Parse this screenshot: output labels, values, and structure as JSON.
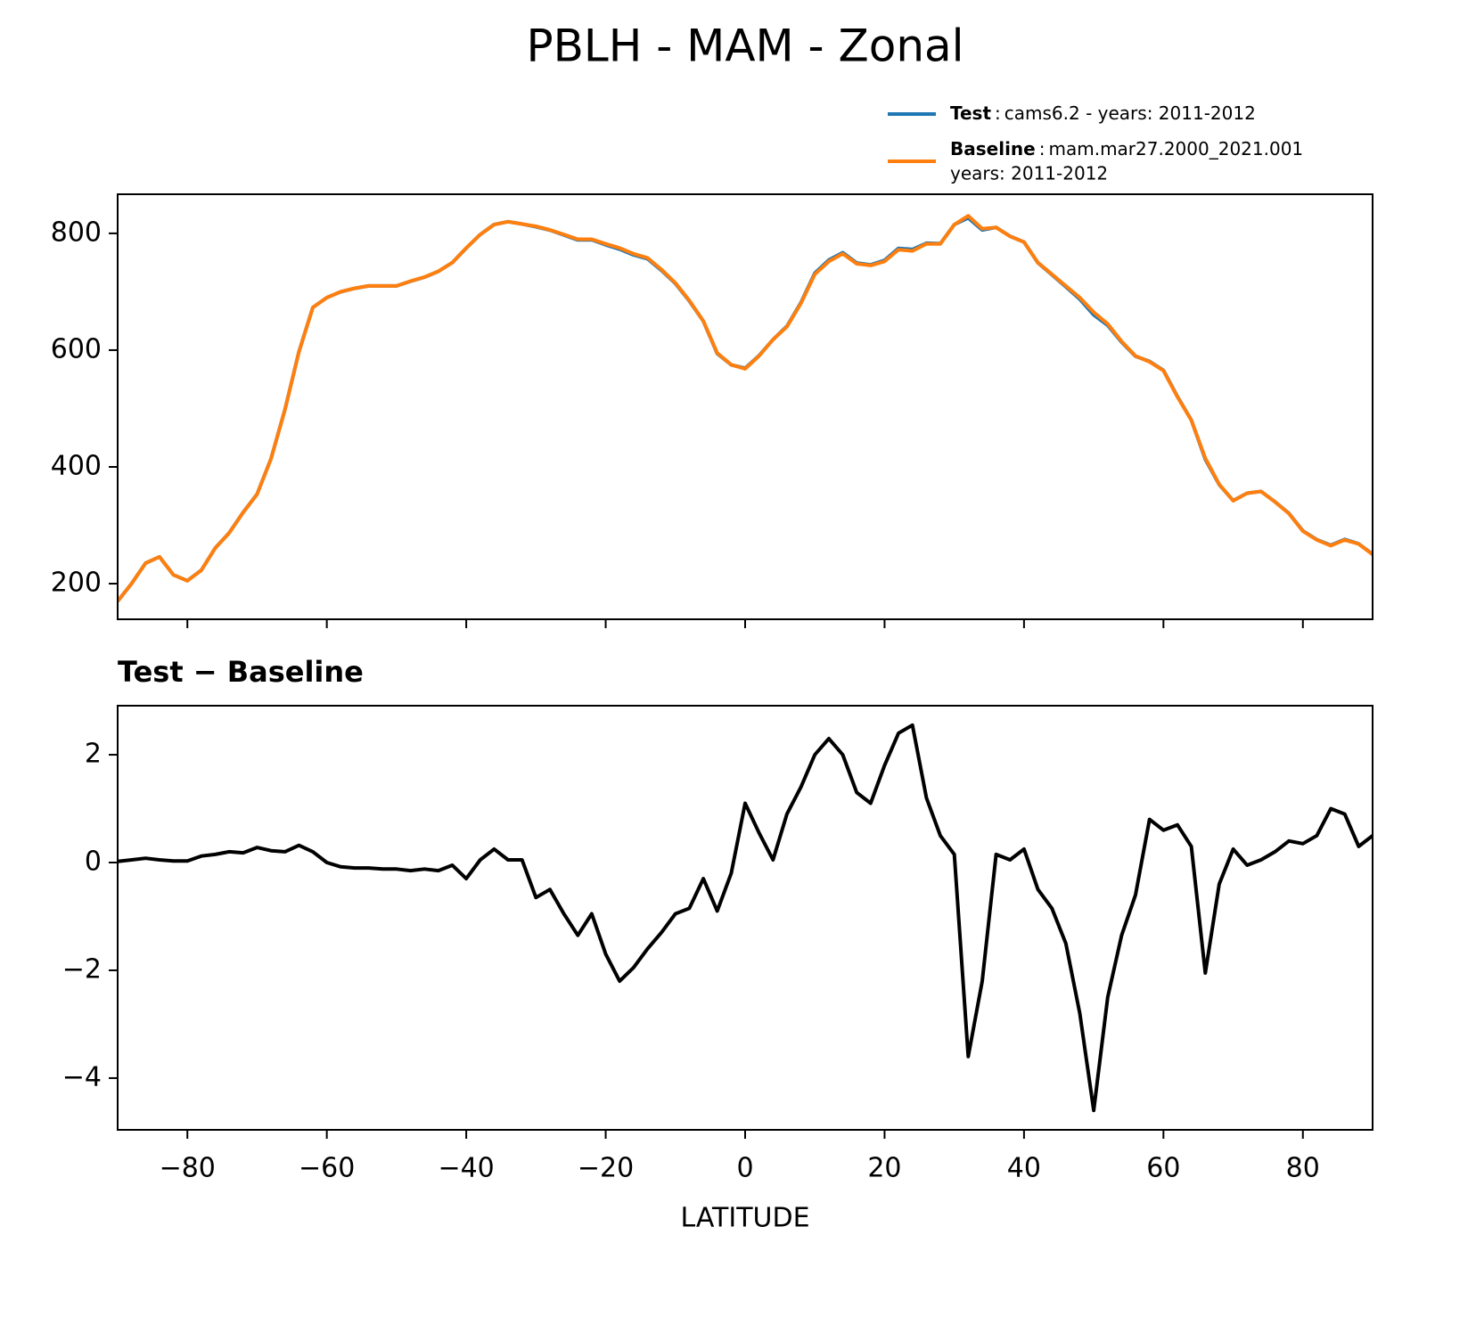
{
  "title": "PBLH - MAM - Zonal",
  "chart_data": [
    {
      "type": "line",
      "x": [
        -90,
        -88,
        -86,
        -84,
        -82,
        -80,
        -78,
        -76,
        -74,
        -72,
        -70,
        -68,
        -66,
        -64,
        -62,
        -60,
        -58,
        -56,
        -54,
        -52,
        -50,
        -48,
        -46,
        -44,
        -42,
        -40,
        -38,
        -36,
        -34,
        -32,
        -30,
        -28,
        -26,
        -24,
        -22,
        -20,
        -18,
        -16,
        -14,
        -12,
        -10,
        -8,
        -6,
        -4,
        -2,
        0,
        2,
        4,
        6,
        8,
        10,
        12,
        14,
        16,
        18,
        20,
        22,
        24,
        26,
        28,
        30,
        32,
        34,
        36,
        38,
        40,
        42,
        44,
        46,
        48,
        50,
        52,
        54,
        56,
        58,
        60,
        62,
        64,
        66,
        68,
        70,
        72,
        74,
        76,
        78,
        80,
        82,
        84,
        86,
        88,
        90
      ],
      "series": [
        {
          "name": "Test",
          "label": [
            "cams6.2 - years: 2011-2012"
          ],
          "color": "#1f77b4",
          "values": [
            170.02,
            200.05,
            235.08,
            246.05,
            215.03,
            205.03,
            223.12,
            261.15,
            287.2,
            322.18,
            353.28,
            414.22,
            498.2,
            597.32,
            673.2,
            690,
            699.92,
            705.9,
            709.9,
            709.88,
            709.88,
            717.85,
            724.88,
            734.85,
            749.95,
            774.7,
            798.05,
            815.25,
            820.05,
            816.05,
            811.35,
            805.5,
            797.05,
            788.65,
            789.05,
            780.3,
            772.8,
            763.05,
            756.4,
            736.7,
            714.05,
            684.15,
            649.7,
            594.1,
            574.8,
            569.1,
            590.55,
            618.05,
            640.9,
            681.4,
            732,
            754.3,
            767,
            749.3,
            746.1,
            753.8,
            774.4,
            772.55,
            783.2,
            782.5,
            815.15,
            826.4,
            805.8,
            810.15,
            795.05,
            785.25,
            749.5,
            729.15,
            708.5,
            687.2,
            660.4,
            642.5,
            613.65,
            589.4,
            580.8,
            565.6,
            520.7,
            480.3,
            412.95,
            369.6,
            342.25,
            354.95,
            358.05,
            340.2,
            320.4,
            290.35,
            275.5,
            266,
            275.9,
            268.3,
            250.5
          ]
        },
        {
          "name": "Baseline",
          "label": [
            "mam.mar27.2000_2021.001",
            "years: 2011-2012"
          ],
          "color": "#ff7f0e",
          "values": [
            170,
            200,
            235,
            246,
            215,
            205,
            223,
            261,
            287,
            322,
            353,
            414,
            498,
            597,
            673,
            690,
            700,
            706,
            710,
            710,
            710,
            718,
            725,
            735,
            750,
            775,
            798,
            815,
            820,
            816,
            812,
            806,
            798,
            790,
            790,
            782,
            775,
            765,
            758,
            738,
            715,
            685,
            650,
            595,
            575,
            568,
            590,
            618,
            640,
            680,
            730,
            752,
            765,
            748,
            745,
            752,
            772,
            770,
            782,
            782,
            815,
            830,
            808,
            810,
            795,
            785,
            750,
            730,
            710,
            690,
            665,
            645,
            615,
            590,
            580,
            565,
            520,
            480,
            415,
            370,
            342,
            355,
            358,
            340,
            320,
            290,
            275,
            265,
            275,
            268,
            250
          ]
        }
      ],
      "xlim": [
        -90,
        90
      ],
      "xticks": [
        -80,
        -60,
        -40,
        -20,
        0,
        20,
        40,
        60,
        80
      ],
      "ylim": [
        139,
        867
      ],
      "yticks": [
        200,
        400,
        600,
        800
      ],
      "legend": "upper right"
    },
    {
      "type": "line",
      "title": "Test − Baseline",
      "xlabel": "LATITUDE",
      "x": [
        -90,
        -88,
        -86,
        -84,
        -82,
        -80,
        -78,
        -76,
        -74,
        -72,
        -70,
        -68,
        -66,
        -64,
        -62,
        -60,
        -58,
        -56,
        -54,
        -52,
        -50,
        -48,
        -46,
        -44,
        -42,
        -40,
        -38,
        -36,
        -34,
        -32,
        -30,
        -28,
        -26,
        -24,
        -22,
        -20,
        -18,
        -16,
        -14,
        -12,
        -10,
        -8,
        -6,
        -4,
        -2,
        0,
        2,
        4,
        6,
        8,
        10,
        12,
        14,
        16,
        18,
        20,
        22,
        24,
        26,
        28,
        30,
        32,
        34,
        36,
        38,
        40,
        42,
        44,
        46,
        48,
        50,
        52,
        54,
        56,
        58,
        60,
        62,
        64,
        66,
        68,
        70,
        72,
        74,
        76,
        78,
        80,
        82,
        84,
        86,
        88,
        90
      ],
      "series": [
        {
          "color": "#000000",
          "values": [
            0.02,
            0.05,
            0.08,
            0.05,
            0.03,
            0.03,
            0.12,
            0.15,
            0.2,
            0.18,
            0.28,
            0.22,
            0.2,
            0.32,
            0.2,
            0,
            -0.08,
            -0.1,
            -0.1,
            -0.12,
            -0.12,
            -0.15,
            -0.12,
            -0.15,
            -0.05,
            -0.3,
            0.05,
            0.25,
            0.05,
            0.05,
            -0.65,
            -0.5,
            -0.95,
            -1.35,
            -0.95,
            -1.7,
            -2.2,
            -1.95,
            -1.6,
            -1.3,
            -0.95,
            -0.85,
            -0.3,
            -0.9,
            -0.2,
            1.1,
            0.55,
            0.05,
            0.9,
            1.4,
            2,
            2.3,
            2,
            1.3,
            1.1,
            1.8,
            2.4,
            2.55,
            1.2,
            0.5,
            0.15,
            -3.6,
            -2.2,
            0.15,
            0.05,
            0.25,
            -0.5,
            -0.85,
            -1.5,
            -2.8,
            -4.6,
            -2.5,
            -1.35,
            -0.6,
            0.8,
            0.6,
            0.7,
            0.3,
            -2.05,
            -0.4,
            0.25,
            -0.05,
            0.05,
            0.2,
            0.4,
            0.35,
            0.5,
            1,
            0.9,
            0.3,
            0.5
          ]
        }
      ],
      "xlim": [
        -90,
        90
      ],
      "xticks": [
        {
          "value": -80,
          "label": "−80"
        },
        {
          "value": -60,
          "label": "−60"
        },
        {
          "value": -40,
          "label": "−40"
        },
        {
          "value": -20,
          "label": "−20"
        },
        0,
        20,
        40,
        60,
        80
      ],
      "ylim": [
        -4.96,
        2.91
      ],
      "yticks": [
        {
          "value": -4,
          "label": "−4"
        },
        {
          "value": -2,
          "label": "−2"
        },
        0,
        2
      ]
    }
  ]
}
